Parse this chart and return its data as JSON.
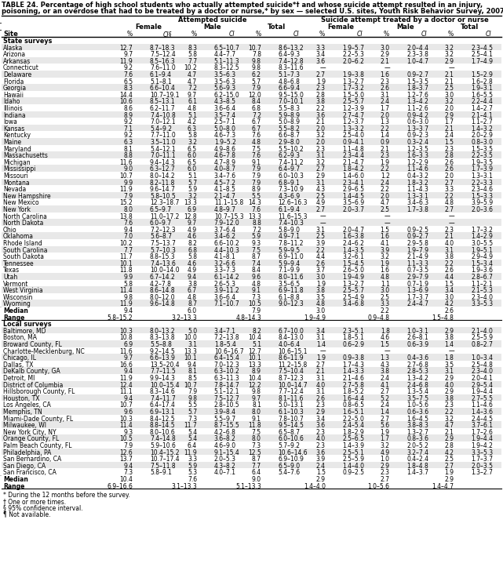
{
  "title1": "TABLE 24. Percentage of high school students who actually attempted suicide*† and whose suicide attempt resulted in an injury,",
  "title2": "poisoning, or an overdose that had to be treated by a doctor or nurse,* by sex — selected U.S. sites, Youth Risk Behavior Survey, 2007",
  "footnotes": [
    "* During the 12 months before the survey.",
    "† One or more times.",
    "§ 95% confidence interval.",
    "¶ Not available."
  ],
  "rows": [
    [
      "Alaska",
      "12.7",
      "8.7–18.3",
      "8.3",
      "6.5–10.7",
      "10.7",
      "8.6–13.2",
      "3.3",
      "1.9–5.7",
      "3.0",
      "2.0–4.4",
      "3.2",
      "2.3–4.5"
    ],
    [
      "Arizona",
      "9.7",
      "7.5–12.4",
      "5.8",
      "4.4–7.7",
      "7.8",
      "6.4–9.3",
      "3.4",
      "2.2–5.3",
      "2.9",
      "2.3–3.8",
      "3.2",
      "2.5–4.1"
    ],
    [
      "Arkansas",
      "11.9",
      "8.5–16.3",
      "7.7",
      "5.1–11.3",
      "9.8",
      "7.4–12.8",
      "3.6",
      "2.0–6.2",
      "2.1",
      "1.0–4.7",
      "2.9",
      "1.7–4.9"
    ],
    [
      "Connecticut",
      "9.2",
      "7.6–11.0",
      "10.2",
      "8.3–12.5",
      "9.8",
      "8.3–11.6",
      "—",
      "",
      "—",
      "",
      "—",
      ""
    ],
    [
      "Delaware",
      "7.6",
      "6.1–9.4",
      "4.7",
      "3.5–6.3",
      "6.2",
      "5.1–7.3",
      "2.7",
      "1.9–3.8",
      "1.6",
      "0.9–2.7",
      "2.1",
      "1.5–2.9"
    ],
    [
      "Florida",
      "6.5",
      "5.1–8.1",
      "4.7",
      "3.5–6.3",
      "5.7",
      "4.8–6.8",
      "1.9",
      "1.3–2.7",
      "2.3",
      "1.5–3.5",
      "2.1",
      "1.6–2.8"
    ],
    [
      "Georgia",
      "8.3",
      "6.6–10.4",
      "7.2",
      "5.6–9.3",
      "7.9",
      "6.6–9.4",
      "2.3",
      "1.7–3.2",
      "2.6",
      "1.8–3.7",
      "2.5",
      "1.9–3.1"
    ],
    [
      "Hawaii",
      "14.4",
      "10.7–19.1",
      "9.7",
      "6.2–15.0",
      "12.0",
      "9.5–15.0",
      "2.8",
      "1.5–5.0",
      "3.1",
      "1.2–7.6",
      "3.0",
      "1.6–5.5"
    ],
    [
      "Idaho",
      "10.6",
      "8.5–13.1",
      "6.1",
      "4.3–8.5",
      "8.4",
      "7.0–10.1",
      "3.8",
      "2.5–5.7",
      "2.4",
      "1.3–4.2",
      "3.2",
      "2.2–4.4"
    ],
    [
      "Illinois",
      "8.6",
      "6.2–11.7",
      "4.8",
      "3.6–6.4",
      "6.8",
      "5.5–8.3",
      "2.2",
      "1.2–3.9",
      "1.7",
      "1.1–2.6",
      "2.0",
      "1.4–2.7"
    ],
    [
      "Indiana",
      "8.9",
      "7.4–10.8",
      "5.1",
      "3.5–7.4",
      "7.2",
      "5.9–8.9",
      "3.6",
      "2.7–4.7",
      "2.0",
      "0.9–4.2",
      "2.9",
      "2.1–4.1"
    ],
    [
      "Iowa",
      "9.2",
      "7.0–12.1",
      "4.2",
      "2.5–7.1",
      "6.7",
      "5.0–8.9",
      "2.1",
      "1.2–3.7",
      "1.3",
      "0.6–3.0",
      "1.7",
      "1.1–2.7"
    ],
    [
      "Kansas",
      "7.1",
      "5.4–9.2",
      "6.3",
      "5.0–8.0",
      "6.7",
      "5.5–8.2",
      "2.0",
      "1.3–3.2",
      "2.2",
      "1.3–3.7",
      "2.1",
      "1.4–3.2"
    ],
    [
      "Kentucky",
      "9.2",
      "7.7–11.0",
      "5.8",
      "4.6–7.3",
      "7.6",
      "6.6–8.7",
      "3.2",
      "2.5–4.0",
      "1.4",
      "0.9–2.3",
      "2.4",
      "2.0–2.9"
    ],
    [
      "Maine",
      "6.3",
      "3.5–11.0",
      "3.2",
      "1.9–5.2",
      "4.8",
      "2.9–8.0",
      "2.0",
      "0.9–4.1",
      "0.9",
      "0.3–2.4",
      "1.5",
      "0.8–3.0"
    ],
    [
      "Maryland",
      "8.1",
      "5.4–12.1",
      "6.5",
      "4.9–8.6",
      "7.5",
      "5.5–10.2",
      "2.3",
      "1.1–4.8",
      "2.1",
      "1.2–3.5",
      "2.3",
      "1.5–3.5"
    ],
    [
      "Massachusetts",
      "8.8",
      "7.0–11.1",
      "6.0",
      "4.6–7.8",
      "7.6",
      "6.2–9.3",
      "3.1",
      "2.3–4.4",
      "2.3",
      "1.6–3.3",
      "2.8",
      "2.2–3.5"
    ],
    [
      "Michigan",
      "11.6",
      "9.4–14.3",
      "6.5",
      "4.7–8.9",
      "9.1",
      "7.4–11.2",
      "3.2",
      "2.1–4.7",
      "1.9",
      "1.2–2.9",
      "2.6",
      "1.9–3.5"
    ],
    [
      "Mississippi",
      "9.0",
      "6.3–12.7",
      "6.0",
      "4.0–8.7",
      "7.9",
      "6.4–9.7",
      "2.7",
      "1.8–4.2",
      "2.2",
      "1.1–4.6",
      "2.6",
      "1.7–3.9"
    ],
    [
      "Missouri",
      "10.7",
      "8.0–14.2",
      "5.1",
      "3.4–7.6",
      "7.9",
      "6.0–10.3",
      "2.9",
      "1.4–6.0",
      "1.2",
      "0.4–3.2",
      "2.0",
      "1.3–3.1"
    ],
    [
      "Montana",
      "9.9",
      "8.2–11.8",
      "5.7",
      "4.5–7.2",
      "7.9",
      "6.8–9.1",
      "3.1",
      "2.3–4.1",
      "2.4",
      "1.8–3.2",
      "2.7",
      "2.2–3.3"
    ],
    [
      "Nevada",
      "11.9",
      "9.6–14.7",
      "5.9",
      "4.1–8.5",
      "8.9",
      "7.3–10.9",
      "4.3",
      "2.9–6.5",
      "2.2",
      "1.1–4.3",
      "3.3",
      "2.3–4.6"
    ],
    [
      "New Hampshire",
      "7.9",
      "5.8–10.5",
      "3.2",
      "2.1–4.7",
      "5.5",
      "4.3–6.9",
      "2.5",
      "1.4–4.5",
      "2.0",
      "1.3–3.1",
      "2.2",
      "1.5–3.3"
    ],
    [
      "New Mexico",
      "15.2",
      "12.3–18.7",
      "13.3",
      "11.1–15.8",
      "14.3",
      "12.6–16.3",
      "4.9",
      "3.5–6.9",
      "4.7",
      "3.4–6.3",
      "4.8",
      "3.9–5.9"
    ],
    [
      "New York",
      "8.0",
      "6.5–9.7",
      "6.9",
      "4.8–9.7",
      "7.6",
      "6.1–9.4",
      "2.7",
      "2.0–3.7",
      "2.5",
      "1.7–3.8",
      "2.7",
      "2.0–3.6"
    ],
    [
      "North Carolina",
      "13.8",
      "11.0–17.2",
      "12.8",
      "10.7–15.3",
      "13.3",
      "11.6–15.3",
      "—",
      "",
      "—",
      "",
      "—",
      ""
    ],
    [
      "North Dakota",
      "7.6",
      "6.0–9.7",
      "9.7",
      "7.9–12.0",
      "8.8",
      "7.4–10.3",
      "—",
      "",
      "—",
      "",
      "—",
      ""
    ],
    [
      "Ohio",
      "9.4",
      "7.2–12.3",
      "4.9",
      "3.7–6.4",
      "7.2",
      "5.8–9.0",
      "3.1",
      "2.0–4.7",
      "1.5",
      "0.9–2.5",
      "2.3",
      "1.7–3.2"
    ],
    [
      "Oklahoma",
      "7.0",
      "5.6–8.7",
      "4.6",
      "3.4–6.2",
      "5.9",
      "4.9–7.1",
      "2.5",
      "1.6–3.8",
      "1.6",
      "0.9–2.7",
      "2.1",
      "1.4–2.9"
    ],
    [
      "Rhode Island",
      "10.2",
      "7.5–13.7",
      "8.2",
      "6.6–10.2",
      "9.3",
      "7.8–11.2",
      "3.9",
      "2.4–6.2",
      "4.1",
      "2.9–5.8",
      "4.0",
      "3.0–5.5"
    ],
    [
      "South Carolina",
      "7.7",
      "5.7–10.3",
      "6.8",
      "4.4–10.3",
      "7.5",
      "5.9–9.5",
      "2.2",
      "1.4–3.5",
      "3.9",
      "1.9–7.9",
      "3.1",
      "1.9–5.1"
    ],
    [
      "South Dakota",
      "11.7",
      "8.8–15.3",
      "5.8",
      "4.1–8.1",
      "8.7",
      "6.9–11.0",
      "4.4",
      "3.2–6.1",
      "3.2",
      "2.1–4.9",
      "3.8",
      "2.9–4.9"
    ],
    [
      "Tennessee",
      "10.1",
      "7.4–13.6",
      "4.6",
      "3.2–6.6",
      "7.4",
      "5.9–9.4",
      "2.6",
      "1.5–4.5",
      "1.9",
      "1.1–3.3",
      "2.2",
      "1.5–3.4"
    ],
    [
      "Texas",
      "11.8",
      "10.0–14.0",
      "4.9",
      "3.3–7.3",
      "8.4",
      "7.1–9.9",
      "3.7",
      "2.6–5.0",
      "1.6",
      "0.7–3.5",
      "2.6",
      "1.9–3.6"
    ],
    [
      "Utah",
      "9.9",
      "6.7–14.2",
      "9.4",
      "6.1–14.2",
      "9.6",
      "8.0–11.6",
      "3.0",
      "1.9–4.9",
      "4.8",
      "2.9–7.9",
      "4.4",
      "2.8–6.7"
    ],
    [
      "Vermont",
      "5.8",
      "4.2–7.8",
      "3.8",
      "2.6–5.3",
      "4.8",
      "3.5–6.5",
      "1.9",
      "1.3–2.7",
      "1.1",
      "0.7–1.9",
      "1.5",
      "1.1–2.1"
    ],
    [
      "West Virginia",
      "11.4",
      "8.6–14.8",
      "6.7",
      "3.9–11.2",
      "9.1",
      "6.9–11.8",
      "3.8",
      "2.5–5.7",
      "3.0",
      "1.3–6.9",
      "3.4",
      "2.1–5.3"
    ],
    [
      "Wisconsin",
      "9.8",
      "8.0–12.0",
      "4.8",
      "3.6–6.4",
      "7.3",
      "6.1–8.8",
      "3.5",
      "2.5–4.9",
      "2.5",
      "1.7–3.7",
      "3.0",
      "2.3–4.0"
    ],
    [
      "Wyoming",
      "11.9",
      "9.6–14.8",
      "8.7",
      "7.1–10.7",
      "10.5",
      "9.0–12.3",
      "4.8",
      "3.4–6.8",
      "3.3",
      "2.4–4.7",
      "4.2",
      "3.3–5.3"
    ],
    [
      "Median",
      "9.4",
      "",
      "6.0",
      "",
      "7.9",
      "",
      "3.0",
      "",
      "2.2",
      "",
      "2.6",
      ""
    ],
    [
      "Range",
      "5.8–15.2",
      "",
      "3.2–13.3",
      "",
      "4.8–14.3",
      "",
      "1.9–4.9",
      "",
      "0.9–4.8",
      "",
      "1.5–4.8",
      ""
    ]
  ],
  "local_rows": [
    [
      "Baltimore, MD",
      "10.3",
      "8.0–13.2",
      "5.0",
      "3.4–7.1",
      "8.2",
      "6.7–10.0",
      "3.4",
      "2.3–5.1",
      "1.8",
      "1.0–3.1",
      "2.9",
      "2.1–4.0"
    ],
    [
      "Boston, MA",
      "10.8",
      "8.3–13.8",
      "10.0",
      "7.2–13.8",
      "10.4",
      "8.4–13.0",
      "3.1",
      "1.8–5.1",
      "4.6",
      "2.6–8.1",
      "3.8",
      "2.5–5.9"
    ],
    [
      "Broward County, FL",
      "6.9",
      "5.5–8.8",
      "3.1",
      "1.8–5.4",
      "5.1",
      "4.0–6.4",
      "1.4",
      "0.6–2.9",
      "1.5",
      "0.6–3.9",
      "1.4",
      "0.8–2.7"
    ],
    [
      "Charlotte-Mecklenburg, NC",
      "11.6",
      "9.2–14.5",
      "13.3",
      "10.6–16.7",
      "12.7",
      "10.6–15.1",
      "—",
      "",
      "—",
      "",
      "—",
      ""
    ],
    [
      "Chicago, IL",
      "9.7",
      "6.6–13.9",
      "10.1",
      "6.4–15.4",
      "10.1",
      "8.6–11.9",
      "1.9",
      "0.9–3.8",
      "1.3",
      "0.4–3.6",
      "1.8",
      "1.0–3.4"
    ],
    [
      "Dallas, TX",
      "16.6",
      "13.5–20.4",
      "9.4",
      "7.0–12.3",
      "13.3",
      "11.2–15.8",
      "2.7",
      "1.7–4.3",
      "4.3",
      "2.7–6.8",
      "3.5",
      "2.5–4.8"
    ],
    [
      "DeKalb County, GA",
      "9.4",
      "7.7–11.5",
      "8.1",
      "6.3–10.2",
      "8.9",
      "7.5–10.4",
      "2.1",
      "1.4–3.3",
      "3.8",
      "2.8–5.3",
      "3.1",
      "2.3–4.0"
    ],
    [
      "Detroit, MI",
      "11.9",
      "9.9–14.3",
      "8.5",
      "6.3–11.3",
      "10.4",
      "8.7–12.3",
      "3.1",
      "2.1–4.6",
      "2.4",
      "1.3–4.2",
      "2.9",
      "2.0–4.1"
    ],
    [
      "District of Columbia",
      "12.4",
      "10.0–15.4",
      "10.7",
      "7.8–14.7",
      "12.2",
      "10.0–14.7",
      "4.0",
      "2.7–5.8",
      "4.1",
      "2.4–6.8",
      "4.0",
      "2.9–5.4"
    ],
    [
      "Hillsborough County, FL",
      "11.1",
      "8.3–14.6",
      "7.9",
      "5.1–12.1",
      "9.8",
      "7.7–12.4",
      "3.1",
      "1.8–5.2",
      "2.7",
      "1.3–5.4",
      "2.9",
      "1.9–4.4"
    ],
    [
      "Houston, TX",
      "9.4",
      "7.4–11.7",
      "9.8",
      "7.5–12.7",
      "9.7",
      "8.1–11.6",
      "2.6",
      "1.6–4.4",
      "5.2",
      "3.5–7.5",
      "3.8",
      "2.7–5.5"
    ],
    [
      "Los Angeles, CA",
      "10.7",
      "6.4–17.4",
      "5.5",
      "2.8–10.5",
      "8.1",
      "5.0–13.1",
      "2.3",
      "0.8–6.5",
      "2.4",
      "1.0–5.6",
      "2.3",
      "1.1–4.6"
    ],
    [
      "Memphis, TN",
      "9.6",
      "6.9–13.1",
      "5.7",
      "3.9–8.4",
      "8.0",
      "6.1–10.3",
      "2.9",
      "1.6–5.1",
      "1.4",
      "0.6–3.6",
      "2.2",
      "1.4–3.6"
    ],
    [
      "Miami-Dade County, FL",
      "10.3",
      "8.4–12.5",
      "7.3",
      "5.5–9.7",
      "9.1",
      "7.8–10.7",
      "3.4",
      "2.2–5.0",
      "2.7",
      "1.6–4.5",
      "3.2",
      "2.4–4.5"
    ],
    [
      "Milwaukee, WI",
      "11.4",
      "8.8–14.5",
      "11.7",
      "8.7–15.5",
      "11.8",
      "9.5–14.5",
      "3.6",
      "2.4–5.4",
      "5.6",
      "3.8–8.3",
      "4.7",
      "3.7–6.1"
    ],
    [
      "New York City, NY",
      "9.3",
      "8.0–10.6",
      "5.4",
      "4.2–6.8",
      "7.5",
      "6.5–8.7",
      "2.3",
      "1.8–2.9",
      "1.9",
      "1.3–2.7",
      "2.1",
      "1.7–2.6"
    ],
    [
      "Orange County, FL",
      "10.5",
      "7.4–14.8",
      "5.4",
      "3.6–8.2",
      "8.0",
      "6.0–10.6",
      "4.0",
      "2.5–6.5",
      "1.7",
      "0.8–3.6",
      "2.9",
      "1.9–4.4"
    ],
    [
      "Palm Beach County, FL",
      "7.9",
      "5.9–10.6",
      "6.4",
      "4.6–9.0",
      "7.3",
      "5.7–9.2",
      "2.3",
      "1.4–3.9",
      "3.2",
      "2.0–5.2",
      "2.8",
      "1.9–4.2"
    ],
    [
      "Philadelphia, PA",
      "12.6",
      "10.4–15.2",
      "11.9",
      "9.1–15.4",
      "12.5",
      "10.6–14.6",
      "3.6",
      "2.5–5.1",
      "4.9",
      "3.2–7.4",
      "4.2",
      "3.3–5.3"
    ],
    [
      "San Bernardino, CA",
      "13.7",
      "10.7–17.4",
      "3.3",
      "2.0–5.3",
      "8.7",
      "6.9–10.9",
      "3.9",
      "2.5–5.9",
      "1.0",
      "0.4–2.4",
      "2.5",
      "1.7–3.7"
    ],
    [
      "San Diego, CA",
      "9.4",
      "7.5–11.8",
      "5.9",
      "4.3–8.2",
      "7.7",
      "6.5–9.0",
      "2.4",
      "1.4–4.0",
      "2.9",
      "1.8–4.8",
      "2.7",
      "2.0–3.5"
    ],
    [
      "San Francisco, CA",
      "7.3",
      "5.8–9.1",
      "5.3",
      "4.0–7.1",
      "6.4",
      "5.4–7.6",
      "1.5",
      "0.9–2.5",
      "2.3",
      "1.4–3.7",
      "1.9",
      "1.3–2.7"
    ],
    [
      "Median",
      "10.4",
      "",
      "7.6",
      "",
      "9.0",
      "",
      "2.9",
      "",
      "2.7",
      "",
      "2.9",
      ""
    ],
    [
      "Range",
      "6.9–16.6",
      "",
      "3.1–13.3",
      "",
      "5.1–13.3",
      "",
      "1.4–4.0",
      "",
      "1.0–5.6",
      "",
      "1.4–4.7",
      ""
    ]
  ]
}
